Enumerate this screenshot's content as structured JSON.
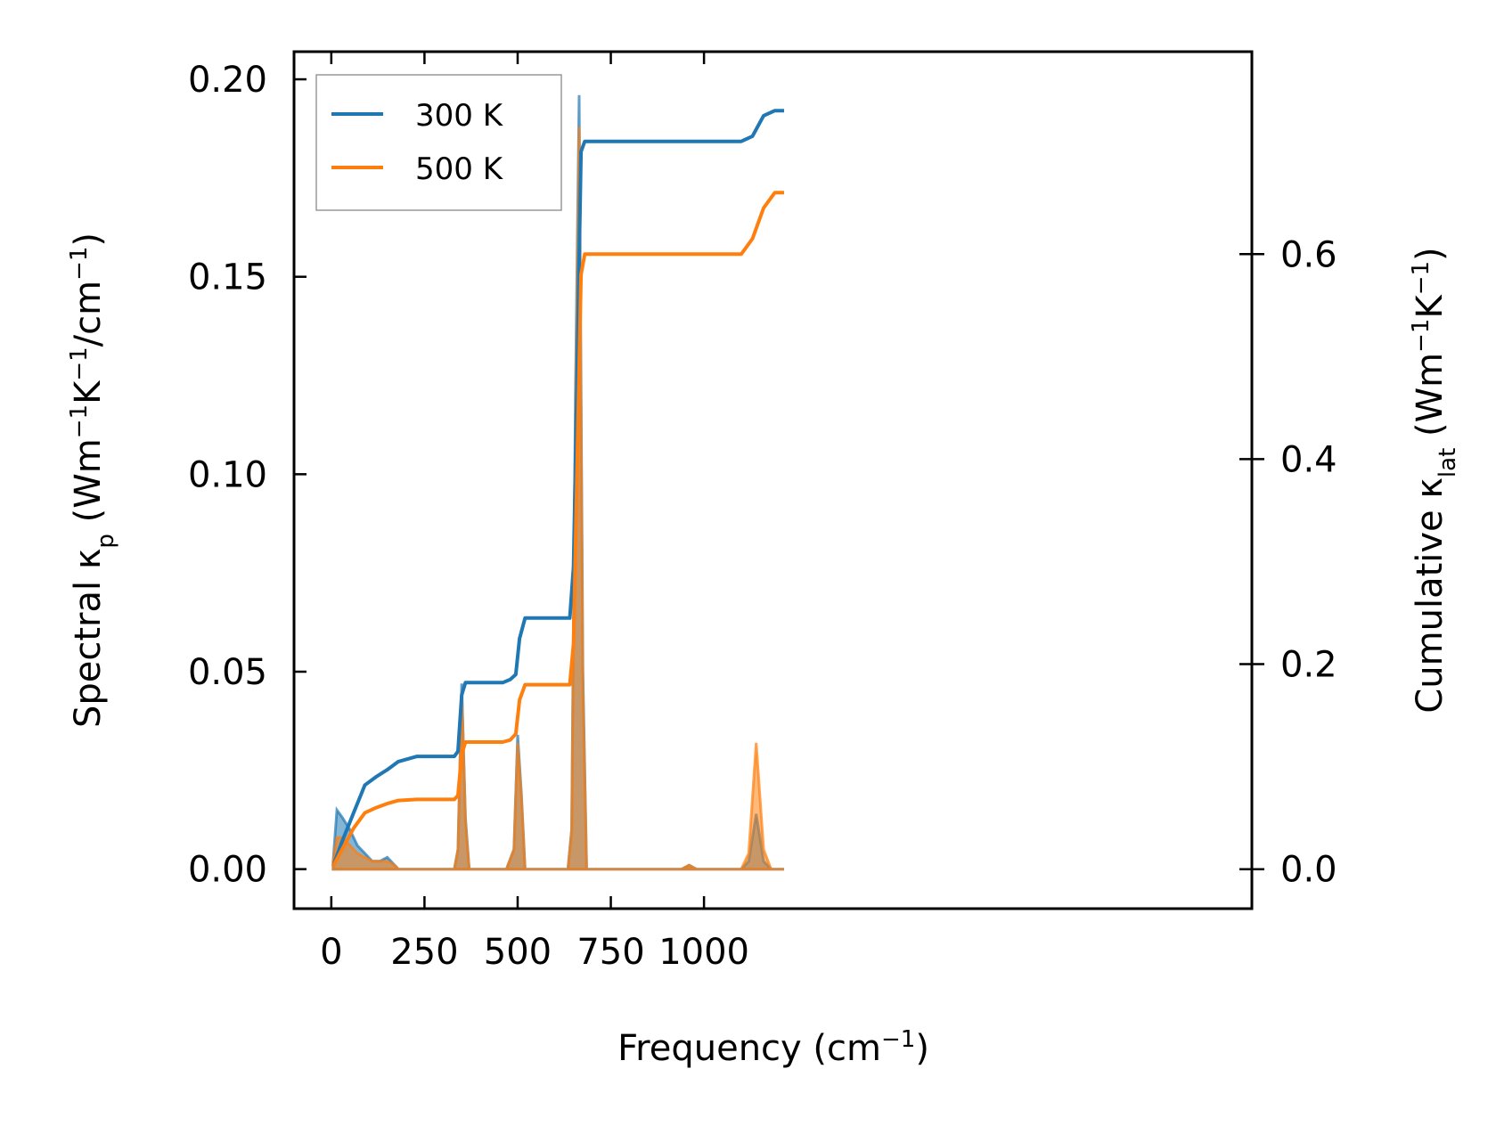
{
  "chart_data": {
    "type": "line",
    "title": "",
    "xlabel": {
      "text": "Frequency (cm",
      "sup": "−1",
      "tail": ")"
    },
    "ylabel_left": {
      "text": "Spectral κ",
      "sub": "p",
      "mid": " (Wm",
      "sup1": "−1",
      "mid2": "K",
      "sup2": "−1",
      "mid3": "/cm",
      "sup3": "−1",
      "tail": ")"
    },
    "ylabel_right": {
      "text": "Cumulative κ",
      "sub": "lat",
      "mid": " (Wm",
      "sup1": "−1",
      "mid2": "K",
      "sup2": "−1",
      "tail": ")"
    },
    "xlim": [
      -100,
      2470
    ],
    "ylim_left": [
      -0.01,
      0.207
    ],
    "ylim_right": [
      -0.0385,
      0.7975
    ],
    "xticks": [
      0,
      250,
      500,
      750,
      1000
    ],
    "xtick_labels": [
      "0",
      "250",
      "500",
      "750",
      "1000"
    ],
    "yticks_left": [
      0.0,
      0.05,
      0.1,
      0.15,
      0.2
    ],
    "ytick_labels_left": [
      "0.00",
      "0.05",
      "0.10",
      "0.15",
      "0.20"
    ],
    "yticks_right": [
      0.0,
      0.2,
      0.4,
      0.6
    ],
    "ytick_labels_right": [
      "0.0",
      "0.2",
      "0.4",
      "0.6"
    ],
    "grid": false,
    "legend_position": "top-left",
    "series": [
      {
        "name": "300 K",
        "color": "#1f77b4",
        "cumulative": [
          [
            5,
            0.003
          ],
          [
            30,
            0.028
          ],
          [
            60,
            0.055
          ],
          [
            90,
            0.082
          ],
          [
            120,
            0.09
          ],
          [
            150,
            0.097
          ],
          [
            180,
            0.105
          ],
          [
            230,
            0.11
          ],
          [
            330,
            0.11
          ],
          [
            340,
            0.115
          ],
          [
            350,
            0.17
          ],
          [
            360,
            0.182
          ],
          [
            460,
            0.182
          ],
          [
            480,
            0.185
          ],
          [
            495,
            0.19
          ],
          [
            505,
            0.225
          ],
          [
            520,
            0.245
          ],
          [
            640,
            0.245
          ],
          [
            650,
            0.295
          ],
          [
            660,
            0.49
          ],
          [
            670,
            0.7
          ],
          [
            680,
            0.71
          ],
          [
            1100,
            0.71
          ],
          [
            1130,
            0.715
          ],
          [
            1160,
            0.735
          ],
          [
            1190,
            0.74
          ],
          [
            1215,
            0.74
          ]
        ],
        "spectral": [
          [
            5,
            0.002
          ],
          [
            15,
            0.015
          ],
          [
            30,
            0.013
          ],
          [
            50,
            0.01
          ],
          [
            70,
            0.006
          ],
          [
            90,
            0.004
          ],
          [
            110,
            0.002
          ],
          [
            130,
            0.002
          ],
          [
            150,
            0.003
          ],
          [
            170,
            0.001
          ],
          [
            180,
            0.0
          ],
          [
            330,
            0.0
          ],
          [
            340,
            0.005
          ],
          [
            350,
            0.047
          ],
          [
            360,
            0.013
          ],
          [
            370,
            0.0
          ],
          [
            470,
            0.0
          ],
          [
            490,
            0.005
          ],
          [
            500,
            0.034
          ],
          [
            510,
            0.019
          ],
          [
            520,
            0.0
          ],
          [
            635,
            0.0
          ],
          [
            645,
            0.01
          ],
          [
            655,
            0.12
          ],
          [
            665,
            0.196
          ],
          [
            675,
            0.05
          ],
          [
            685,
            0.0
          ],
          [
            940,
            0.0
          ],
          [
            960,
            0.001
          ],
          [
            980,
            0.0
          ],
          [
            1100,
            0.0
          ],
          [
            1120,
            0.002
          ],
          [
            1140,
            0.014
          ],
          [
            1160,
            0.002
          ],
          [
            1180,
            0.0
          ],
          [
            1215,
            0.0
          ]
        ]
      },
      {
        "name": "500 K",
        "color": "#ff7f0e",
        "cumulative": [
          [
            5,
            0.003
          ],
          [
            30,
            0.02
          ],
          [
            60,
            0.04
          ],
          [
            90,
            0.055
          ],
          [
            120,
            0.06
          ],
          [
            150,
            0.064
          ],
          [
            180,
            0.067
          ],
          [
            230,
            0.068
          ],
          [
            330,
            0.068
          ],
          [
            340,
            0.072
          ],
          [
            350,
            0.112
          ],
          [
            360,
            0.124
          ],
          [
            460,
            0.124
          ],
          [
            480,
            0.126
          ],
          [
            495,
            0.132
          ],
          [
            505,
            0.165
          ],
          [
            520,
            0.18
          ],
          [
            640,
            0.18
          ],
          [
            650,
            0.22
          ],
          [
            660,
            0.4
          ],
          [
            670,
            0.58
          ],
          [
            680,
            0.6
          ],
          [
            1100,
            0.6
          ],
          [
            1130,
            0.615
          ],
          [
            1160,
            0.645
          ],
          [
            1190,
            0.66
          ],
          [
            1215,
            0.66
          ]
        ],
        "spectral": [
          [
            5,
            0.002
          ],
          [
            15,
            0.008
          ],
          [
            30,
            0.008
          ],
          [
            50,
            0.006
          ],
          [
            70,
            0.004
          ],
          [
            90,
            0.003
          ],
          [
            110,
            0.002
          ],
          [
            130,
            0.002
          ],
          [
            150,
            0.002
          ],
          [
            170,
            0.001
          ],
          [
            180,
            0.0
          ],
          [
            330,
            0.0
          ],
          [
            340,
            0.005
          ],
          [
            350,
            0.045
          ],
          [
            360,
            0.012
          ],
          [
            370,
            0.0
          ],
          [
            470,
            0.0
          ],
          [
            490,
            0.005
          ],
          [
            500,
            0.032
          ],
          [
            510,
            0.018
          ],
          [
            520,
            0.0
          ],
          [
            635,
            0.0
          ],
          [
            645,
            0.01
          ],
          [
            655,
            0.11
          ],
          [
            665,
            0.188
          ],
          [
            675,
            0.045
          ],
          [
            685,
            0.0
          ],
          [
            940,
            0.0
          ],
          [
            960,
            0.001
          ],
          [
            980,
            0.0
          ],
          [
            1100,
            0.0
          ],
          [
            1120,
            0.004
          ],
          [
            1140,
            0.032
          ],
          [
            1160,
            0.005
          ],
          [
            1180,
            0.0
          ],
          [
            1215,
            0.0
          ]
        ]
      }
    ]
  }
}
